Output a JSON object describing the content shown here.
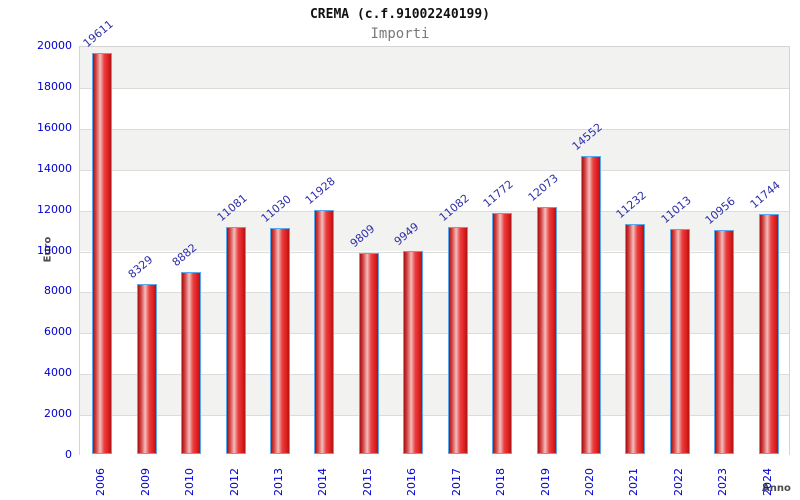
{
  "chart_data": {
    "type": "bar",
    "title": "CREMA (c.f.91002240199)",
    "subtitle": "Importi",
    "xlabel": "Anno",
    "ylabel": "Euro",
    "categories": [
      "2006",
      "2009",
      "2010",
      "2012",
      "2013",
      "2014",
      "2015",
      "2016",
      "2017",
      "2018",
      "2019",
      "2020",
      "2021",
      "2022",
      "2023",
      "2024"
    ],
    "values": [
      19611,
      8329,
      8882,
      11081,
      11030,
      11928,
      9809,
      9949,
      11082,
      11772,
      12073,
      14552,
      11232,
      11013,
      10956,
      11744
    ],
    "ylim": [
      0,
      20000
    ],
    "ytick_step": 2000,
    "grid": true,
    "legend": "none",
    "colors": {
      "tick_label": "#0000d0",
      "value_label": "#2d2da8",
      "bar_main": "#e02222",
      "bar_border": "#58a8ef",
      "band_shade": "#f2f2f0",
      "band_plain": "#ffffff",
      "gridline": "#dcdcdc",
      "title": "#111111",
      "subtitle": "#7a7a7a",
      "axis_title": "#4a4a4a"
    }
  }
}
